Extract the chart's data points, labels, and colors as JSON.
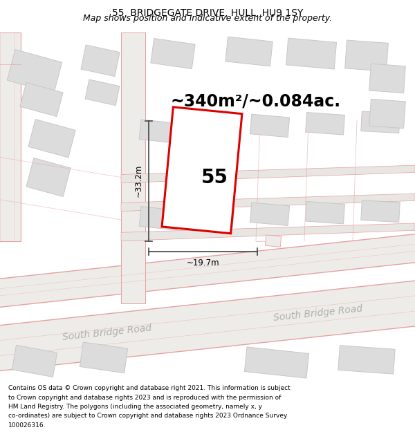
{
  "title": "55, BRIDGEGATE DRIVE, HULL, HU9 1SY",
  "subtitle": "Map shows position and indicative extent of the property.",
  "area_text": "~340m²/~0.084ac.",
  "property_number": "55",
  "dim_vertical": "~33.2m",
  "dim_horizontal": "~19.7m",
  "road_label_lower": "South Bridge Road",
  "road_label_upper": "South Bridge Road",
  "footer_lines": [
    "Contains OS data © Crown copyright and database right 2021. This information is subject",
    "to Crown copyright and database rights 2023 and is reproduced with the permission of",
    "HM Land Registry. The polygons (including the associated geometry, namely x, y",
    "co-ordinates) are subject to Crown copyright and database rights 2023 Ordnance Survey",
    "100026316."
  ],
  "bg_color": "#ffffff",
  "map_bg": "#f2f1f0",
  "plot_color": "#dd0000",
  "road_line_color": "#e8a0a0",
  "building_fill": "#dcdcdc",
  "building_edge": "#c8c8c8",
  "road_fill": "#f8f6f4",
  "dim_color": "#444444",
  "road_label_color": "#b0b0b0",
  "title_fontsize": 10,
  "subtitle_fontsize": 9,
  "area_fontsize": 17,
  "number_fontsize": 20,
  "road_label_fontsize": 10,
  "footer_fontsize": 6.5,
  "dim_fontsize": 8.5
}
